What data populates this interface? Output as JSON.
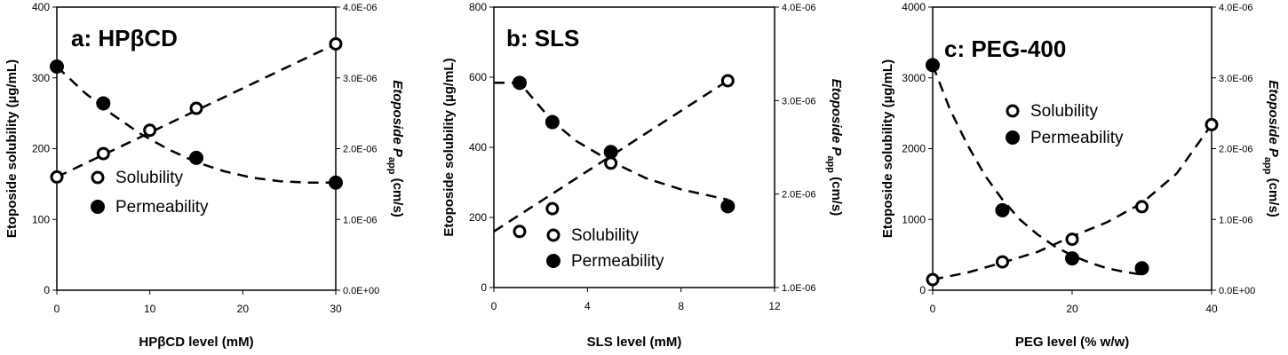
{
  "chart_data": [
    {
      "type": "scatter",
      "title": "a: HPβCD",
      "xlabel": "HPβCD level (mM)",
      "ylabel": "Etoposide solubility (µg/mL)",
      "y2label_main": "Etoposide P",
      "y2label_sub": "app",
      "y2label_tail": " (cm/s)",
      "xlim": [
        0,
        30
      ],
      "ylim": [
        0,
        400
      ],
      "y2lim": [
        0,
        4e-06
      ],
      "x_ticks": [
        0,
        10,
        20,
        30
      ],
      "y_ticks": [
        0,
        100,
        200,
        300,
        400
      ],
      "y2_ticks": [
        "0.0E+00",
        "1.0E-06",
        "2.0E-06",
        "3.0E-06",
        "4.0E-06"
      ],
      "y2_tick_values": [
        0,
        1e-06,
        2e-06,
        3e-06,
        4e-06
      ],
      "legend": {
        "items": [
          "Solubility",
          "Permeability"
        ],
        "placement": "lower-left"
      },
      "series": [
        {
          "name": "Solubility",
          "axis": "left",
          "marker": "open-circle",
          "x": [
            0,
            5,
            10,
            15,
            30
          ],
          "y": [
            160,
            193,
            226,
            257,
            348
          ],
          "fit_x": [
            0,
            30
          ],
          "fit_y": [
            160,
            348
          ]
        },
        {
          "name": "Permeability",
          "axis": "right",
          "marker": "filled-circle",
          "x": [
            0,
            5,
            15,
            30
          ],
          "y": [
            3.16e-06,
            2.64e-06,
            1.87e-06,
            1.52e-06
          ],
          "fit_x": [
            0,
            3,
            6,
            9,
            12,
            15,
            18,
            21,
            24,
            27,
            30
          ],
          "fit_y": [
            3.16e-06,
            2.79e-06,
            2.48e-06,
            2.21e-06,
            1.99e-06,
            1.81e-06,
            1.68e-06,
            1.59e-06,
            1.54e-06,
            1.52e-06,
            1.52e-06
          ]
        }
      ],
      "grid": false
    },
    {
      "type": "scatter",
      "title": "b: SLS",
      "xlabel": "SLS level (mM)",
      "ylabel": "Etoposide solubility (µg/mL)",
      "y2label_main": "Etoposide P",
      "y2label_sub": "app",
      "y2label_tail": " (cm/s)",
      "xlim": [
        0,
        12
      ],
      "ylim": [
        0,
        800
      ],
      "y2lim": [
        1e-06,
        4e-06
      ],
      "x_ticks": [
        0,
        4,
        8,
        12
      ],
      "y_ticks": [
        0,
        200,
        400,
        600,
        800
      ],
      "y2_ticks": [
        "1.0E-06",
        "2.0E-06",
        "3.0E-06",
        "4.0E-06"
      ],
      "y2_tick_values": [
        1e-06,
        2e-06,
        3e-06,
        4e-06
      ],
      "legend": {
        "items": [
          "Solubility",
          "Permeability"
        ],
        "placement": "lower-right"
      },
      "series": [
        {
          "name": "Solubility",
          "axis": "left",
          "marker": "open-circle",
          "x": [
            1.1,
            2.5,
            5,
            10
          ],
          "y": [
            160,
            225,
            355,
            590
          ],
          "fit_x": [
            0,
            10
          ],
          "fit_y": [
            160,
            590
          ]
        },
        {
          "name": "Permeability",
          "axis": "right",
          "marker": "filled-circle",
          "x": [
            1.1,
            2.5,
            5,
            10
          ],
          "y": [
            3.19e-06,
            2.77e-06,
            2.45e-06,
            1.87e-06
          ],
          "fit_x": [
            0,
            1.1,
            2.5,
            3.5,
            5,
            6.5,
            8,
            10
          ],
          "fit_y": [
            3.19e-06,
            3.19e-06,
            2.78e-06,
            2.57e-06,
            2.35e-06,
            2.17e-06,
            2.05e-06,
            1.94e-06
          ]
        }
      ],
      "grid": false
    },
    {
      "type": "scatter",
      "title": "c: PEG-400",
      "xlabel": "PEG level (% w/w)",
      "ylabel": "Etoposide solubility (µg/mL)",
      "y2label_main": "Etoposide P",
      "y2label_sub": "app",
      "y2label_tail": " (cm/s)",
      "xlim": [
        0,
        40
      ],
      "ylim": [
        0,
        4000
      ],
      "y2lim": [
        0,
        4e-06
      ],
      "x_ticks": [
        0,
        20,
        40
      ],
      "y_ticks": [
        0,
        1000,
        2000,
        3000,
        4000
      ],
      "y2_ticks": [
        "0.0E+00",
        "1.0E-06",
        "2.0E-06",
        "3.0E-06",
        "4.0E-06"
      ],
      "y2_tick_values": [
        0,
        1e-06,
        2e-06,
        3e-06,
        4e-06
      ],
      "legend": {
        "items": [
          "Solubility",
          "Permeability"
        ],
        "placement": "upper-right"
      },
      "series": [
        {
          "name": "Solubility",
          "axis": "left",
          "marker": "open-circle",
          "x": [
            0,
            10,
            20,
            30,
            40
          ],
          "y": [
            150,
            400,
            720,
            1180,
            2340
          ],
          "fit_x": [
            0,
            5,
            10,
            15,
            20,
            25,
            30,
            35,
            40
          ],
          "fit_y": [
            150,
            250,
            390,
            540,
            760,
            960,
            1230,
            1650,
            2340
          ]
        },
        {
          "name": "Permeability",
          "axis": "right",
          "marker": "filled-circle",
          "x": [
            0,
            10,
            20,
            30
          ],
          "y": [
            3.18e-06,
            1.13e-06,
            4.5e-07,
            3.1e-07
          ],
          "fit_x": [
            0,
            2.5,
            5,
            7.5,
            10,
            12.5,
            15,
            17.5,
            20,
            22.5,
            25,
            27.5,
            30
          ],
          "fit_y": [
            3.18e-06,
            2.55e-06,
            2.05e-06,
            1.62e-06,
            1.28e-06,
            1e-06,
            7.9e-07,
            6.2e-07,
            4.9e-07,
            3.9e-07,
            3.1e-07,
            2.6e-07,
            2.2e-07
          ]
        }
      ],
      "grid": false
    }
  ]
}
